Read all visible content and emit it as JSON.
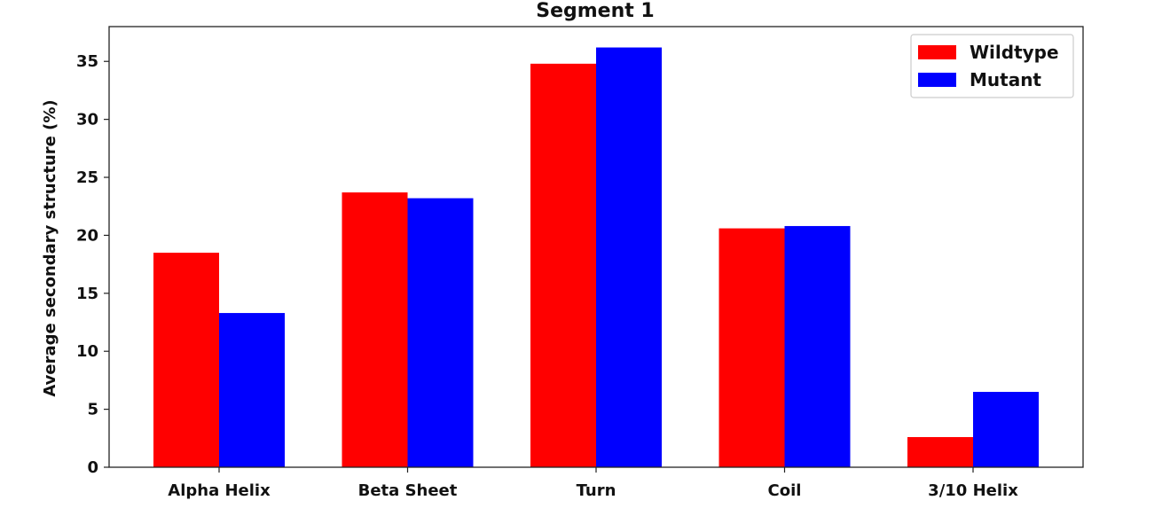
{
  "chart_data": {
    "type": "bar",
    "title": "Segment 1",
    "xlabel": "",
    "ylabel": "Average secondary structure (%)",
    "categories": [
      "Alpha Helix",
      "Beta Sheet",
      "Turn",
      "Coil",
      "3/10 Helix"
    ],
    "series": [
      {
        "name": "Wildtype",
        "color": "#ff0000",
        "values": [
          18.5,
          23.7,
          34.8,
          20.6,
          2.6
        ]
      },
      {
        "name": "Mutant",
        "color": "#0000ff",
        "values": [
          13.3,
          23.2,
          36.2,
          20.8,
          6.5
        ]
      }
    ],
    "ylim": [
      0,
      38
    ],
    "yticks": [
      0,
      5,
      10,
      15,
      20,
      25,
      30,
      35
    ],
    "grid": false,
    "legend_position": "top-right"
  }
}
